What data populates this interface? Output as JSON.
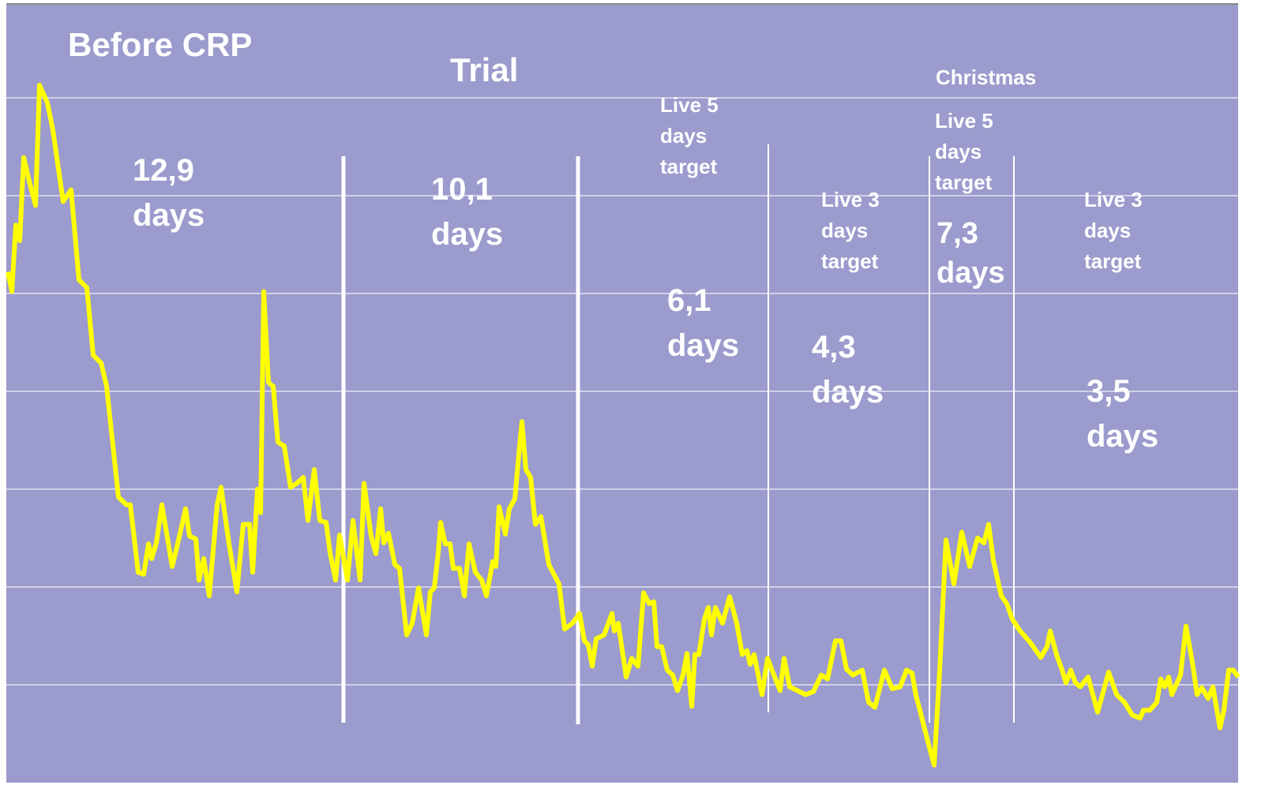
{
  "chart_data": {
    "type": "line",
    "ylim": [
      0,
      8
    ],
    "yticks": [
      1,
      2,
      3,
      4,
      5,
      6,
      7
    ],
    "grid": true,
    "xlim": [
      0,
      1560
    ],
    "series": [
      {
        "color": "#ffff00",
        "x": [
          2,
          7,
          12,
          17,
          22,
          29,
          37,
          42,
          52,
          59,
          72,
          82,
          92,
          102,
          110,
          120,
          127,
          142,
          152,
          157,
          167,
          174,
          180,
          184,
          190,
          197,
          202,
          210,
          217,
          227,
          232,
          240,
          244,
          250,
          257,
          267,
          272,
          282,
          292,
          300,
          308,
          312,
          318,
          322,
          326,
          332,
          338,
          344,
          352,
          360,
          368,
          376,
          382,
          390,
          397,
          405,
          410,
          417,
          422,
          432,
          439,
          448,
          453,
          462,
          468,
          474,
          478,
          484,
          492,
          498,
          507,
          514,
          522,
          532,
          537,
          542,
          547,
          550,
          556,
          562,
          566,
          574,
          580,
          586,
          594,
          602,
          608,
          616,
          620,
          624,
          632,
          637,
          644,
          650,
          653,
          658,
          664,
          670,
          677,
          687,
          700,
          707,
          717,
          726,
          732,
          737,
          742,
          747,
          757,
          767,
          770,
          775,
          785,
          792,
          800,
          807,
          814,
          820,
          824,
          830,
          837,
          844,
          850,
          857,
          862,
          868,
          872,
          877,
          884,
          889,
          893,
          898,
          907,
          916,
          925,
          932,
          938,
          942,
          947,
          957,
          964,
          972,
          980,
          985,
          992,
          1002,
          1012,
          1022,
          1032,
          1040,
          1050,
          1057,
          1064,
          1072,
          1084,
          1092,
          1100,
          1112,
          1122,
          1132,
          1140,
          1147,
          1152,
          1157,
          1167,
          1175,
          1182,
          1190,
          1200,
          1210,
          1220,
          1230,
          1238,
          1244,
          1250,
          1260,
          1267,
          1274,
          1284,
          1297,
          1310,
          1318,
          1322,
          1330,
          1337,
          1342,
          1348,
          1354,
          1360,
          1370,
          1382,
          1396,
          1406,
          1416,
          1426,
          1436,
          1440,
          1448,
          1457,
          1462,
          1467,
          1472,
          1476,
          1487,
          1494,
          1502,
          1508,
          1514,
          1522,
          1528,
          1537,
          1542,
          1548,
          1554,
          1560
        ],
        "values": [
          5.22,
          5.02,
          5.7,
          5.54,
          6.39,
          6.15,
          5.9,
          7.13,
          6.95,
          6.67,
          5.94,
          6.06,
          5.14,
          5.06,
          4.37,
          4.29,
          4.05,
          2.92,
          2.84,
          2.84,
          2.15,
          2.13,
          2.44,
          2.29,
          2.45,
          2.84,
          2.6,
          2.21,
          2.44,
          2.8,
          2.52,
          2.49,
          2.07,
          2.29,
          1.91,
          2.84,
          3.02,
          2.44,
          1.95,
          2.64,
          2.64,
          2.15,
          3.0,
          2.76,
          5.02,
          4.09,
          4.05,
          3.48,
          3.44,
          3.02,
          3.06,
          3.12,
          2.68,
          3.2,
          2.68,
          2.66,
          2.35,
          2.07,
          2.53,
          2.07,
          2.68,
          2.07,
          3.06,
          2.52,
          2.34,
          2.8,
          2.45,
          2.55,
          2.23,
          2.19,
          1.51,
          1.63,
          1.99,
          1.51,
          1.95,
          1.99,
          2.35,
          2.66,
          2.44,
          2.44,
          2.19,
          2.19,
          1.91,
          2.44,
          2.15,
          2.07,
          1.91,
          2.26,
          2.21,
          2.82,
          2.54,
          2.8,
          2.9,
          3.44,
          3.69,
          3.2,
          3.12,
          2.64,
          2.72,
          2.23,
          2.03,
          1.57,
          1.63,
          1.73,
          1.45,
          1.41,
          1.19,
          1.47,
          1.51,
          1.73,
          1.55,
          1.63,
          1.08,
          1.27,
          1.19,
          1.94,
          1.83,
          1.85,
          1.39,
          1.39,
          1.15,
          1.1,
          0.94,
          1.1,
          1.32,
          0.78,
          1.31,
          1.31,
          1.67,
          1.79,
          1.51,
          1.79,
          1.63,
          1.9,
          1.63,
          1.31,
          1.35,
          1.21,
          1.31,
          0.9,
          1.27,
          1.1,
          0.94,
          1.27,
          0.98,
          0.94,
          0.9,
          0.93,
          1.1,
          1.06,
          1.45,
          1.45,
          1.16,
          1.1,
          1.15,
          0.82,
          0.77,
          1.15,
          0.96,
          0.98,
          1.15,
          1.12,
          0.89,
          0.74,
          0.42,
          0.18,
          1.15,
          2.48,
          2.03,
          2.56,
          2.21,
          2.5,
          2.45,
          2.64,
          2.27,
          1.91,
          1.83,
          1.67,
          1.55,
          1.43,
          1.28,
          1.39,
          1.55,
          1.31,
          1.15,
          1.02,
          1.15,
          1.02,
          0.98,
          1.08,
          0.72,
          1.13,
          0.9,
          0.82,
          0.69,
          0.66,
          0.74,
          0.74,
          0.82,
          1.06,
          0.98,
          1.08,
          0.9,
          1.1,
          1.6,
          1.23,
          0.9,
          0.97,
          0.86,
          0.98,
          0.56,
          0.74,
          1.15,
          1.15,
          1.08
        ]
      }
    ],
    "annotations": [
      [
        "Before CRP"
      ],
      [
        "Trial"
      ],
      [
        "Christmas"
      ],
      [
        "12,9",
        "days"
      ],
      [
        "10,1",
        "days"
      ],
      [
        "Live 5",
        "days",
        "target"
      ],
      [
        "6,1",
        "days"
      ],
      [
        "Live 3",
        "days",
        "target"
      ],
      [
        "4,3",
        "days"
      ],
      [
        "Live 5",
        "days",
        "target"
      ],
      [
        "7,3",
        "days"
      ],
      [
        "Live 3",
        "days",
        "target"
      ],
      [
        "3,5",
        "days"
      ]
    ]
  }
}
